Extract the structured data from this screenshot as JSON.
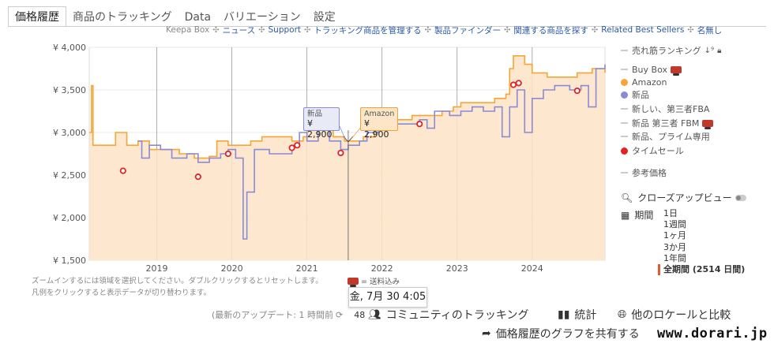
{
  "tabs": [
    "価格履歴",
    "商品のトラッキング",
    "Data",
    "バリエーション",
    "設定"
  ],
  "sublinks": {
    "keepa_box": "Keepa Box",
    "items": [
      "ニュース",
      "Support",
      "トラッキング商品を管理する",
      "製品ファインダー",
      "関連する商品を探す",
      "Related Best Sellers",
      "名無し"
    ]
  },
  "legend": {
    "items": [
      {
        "label": "売れ筋ランキング",
        "kind": "dash",
        "color": "#bbbbbb"
      },
      {
        "label": "Buy Box",
        "kind": "dash",
        "color": "#bbbbbb"
      },
      {
        "label": "Amazon",
        "kind": "dot",
        "color": "#f7a534"
      },
      {
        "label": "新品",
        "kind": "dot",
        "color": "#8a8ad6"
      },
      {
        "label": "新しい、第三者FBA",
        "kind": "dash",
        "color": "#bbbbbb"
      },
      {
        "label": "新品 第三者 FBM",
        "kind": "dash",
        "color": "#bbbbbb"
      },
      {
        "label": "新品、プライム専用",
        "kind": "dash",
        "color": "#bbbbbb"
      },
      {
        "label": "タイムセール",
        "kind": "dot",
        "color": "#e32226"
      },
      {
        "label": "参考価格",
        "kind": "dash",
        "color": "#bbbbbb"
      }
    ]
  },
  "closeup_label": "クローズアップビュー",
  "period": {
    "label": "期間",
    "options": [
      "1日",
      "1週間",
      "1ヶ月",
      "3か月",
      "1年間",
      "全期間 (2514 日間)"
    ],
    "selected_index": 5
  },
  "hints": [
    "ズームインするには領域を選択してください。ダブルクリックするとリセットします。",
    "凡例をクリックすると表示データが切り替わります。"
  ],
  "shipping_label": "= 送料込み",
  "tooltips": {
    "new": {
      "title": "新品",
      "value": "¥ 2,900"
    },
    "amazon": {
      "title": "Amazon",
      "value": "¥ 2,900"
    },
    "date": "金, 7月 30 4:05"
  },
  "footer": {
    "last_update": "(最新のアップデート: 1 時間前",
    "community_count": "48",
    "community_label": "コミュニティのトラッキング",
    "stats_label": "統計",
    "compare_label": "他のロケールと比較",
    "share_label": "価格履歴のグラフを共有する",
    "watermark": "www.dorari.jp"
  },
  "chart_data": {
    "type": "line",
    "ylim": [
      1500,
      4000
    ],
    "y_ticks": [
      "¥ 1,500",
      "¥ 2,000",
      "¥ 2,500",
      "¥ 3,000",
      "¥ 3,500",
      "¥ 4,000"
    ],
    "x_ticks": [
      "2019",
      "2020",
      "2021",
      "2022",
      "2023",
      "2024"
    ],
    "x_range": [
      2018.1,
      2024.97
    ],
    "series": [
      {
        "name": "Amazon",
        "color": "#f7a534",
        "points": [
          [
            2018.1,
            3000
          ],
          [
            2018.13,
            3550
          ],
          [
            2018.15,
            2850
          ],
          [
            2018.4,
            2850
          ],
          [
            2018.45,
            3000
          ],
          [
            2018.6,
            2850
          ],
          [
            2018.75,
            2900
          ],
          [
            2018.9,
            2800
          ],
          [
            2019.1,
            2800
          ],
          [
            2019.3,
            2750
          ],
          [
            2019.5,
            2700
          ],
          [
            2019.7,
            2720
          ],
          [
            2019.8,
            2900
          ],
          [
            2019.95,
            2850
          ],
          [
            2020.1,
            2850
          ],
          [
            2020.25,
            2900
          ],
          [
            2020.4,
            2950
          ],
          [
            2020.6,
            2950
          ],
          [
            2020.8,
            2900
          ],
          [
            2020.95,
            2950
          ],
          [
            2021.0,
            3100
          ],
          [
            2021.2,
            3050
          ],
          [
            2021.35,
            2950
          ],
          [
            2021.5,
            2900
          ],
          [
            2021.6,
            2900
          ],
          [
            2021.75,
            2950
          ],
          [
            2021.9,
            3050
          ],
          [
            2022.0,
            3100
          ],
          [
            2022.2,
            3150
          ],
          [
            2022.4,
            3200
          ],
          [
            2022.6,
            3200
          ],
          [
            2022.8,
            3250
          ],
          [
            2022.95,
            3300
          ],
          [
            2023.05,
            3350
          ],
          [
            2023.2,
            3350
          ],
          [
            2023.35,
            3350
          ],
          [
            2023.5,
            3400
          ],
          [
            2023.65,
            3450
          ],
          [
            2023.7,
            3750
          ],
          [
            2023.75,
            3900
          ],
          [
            2023.9,
            3800
          ],
          [
            2024.0,
            3700
          ],
          [
            2024.2,
            3650
          ],
          [
            2024.4,
            3650
          ],
          [
            2024.6,
            3700
          ],
          [
            2024.8,
            3750
          ],
          [
            2024.97,
            3700
          ]
        ]
      },
      {
        "name": "新品",
        "color": "#8a8ad6",
        "points": [
          [
            2018.75,
            2900
          ],
          [
            2018.8,
            2700
          ],
          [
            2018.9,
            2850
          ],
          [
            2019.05,
            2800
          ],
          [
            2019.2,
            2700
          ],
          [
            2019.4,
            2750
          ],
          [
            2019.55,
            2650
          ],
          [
            2019.7,
            2700
          ],
          [
            2019.85,
            2750
          ],
          [
            2019.95,
            2800
          ],
          [
            2020.05,
            2700
          ],
          [
            2020.15,
            1750
          ],
          [
            2020.2,
            2300
          ],
          [
            2020.3,
            2800
          ],
          [
            2020.5,
            2750
          ],
          [
            2020.7,
            2750
          ],
          [
            2020.8,
            2850
          ],
          [
            2020.9,
            3000
          ],
          [
            2021.0,
            2900
          ],
          [
            2021.15,
            3050
          ],
          [
            2021.3,
            2900
          ],
          [
            2021.45,
            2800
          ],
          [
            2021.55,
            2850
          ],
          [
            2021.7,
            2900
          ],
          [
            2021.8,
            3000
          ],
          [
            2021.95,
            3050
          ],
          [
            2022.1,
            3100
          ],
          [
            2022.3,
            3100
          ],
          [
            2022.5,
            3150
          ],
          [
            2022.6,
            3050
          ],
          [
            2022.7,
            3250
          ],
          [
            2022.9,
            3200
          ],
          [
            2023.05,
            3250
          ],
          [
            2023.2,
            3300
          ],
          [
            2023.35,
            3250
          ],
          [
            2023.5,
            3300
          ],
          [
            2023.6,
            2950
          ],
          [
            2023.7,
            3300
          ],
          [
            2023.8,
            3500
          ],
          [
            2023.9,
            3000
          ],
          [
            2024.0,
            3400
          ],
          [
            2024.15,
            3500
          ],
          [
            2024.3,
            3550
          ],
          [
            2024.5,
            3500
          ],
          [
            2024.65,
            3550
          ],
          [
            2024.75,
            3300
          ],
          [
            2024.85,
            3750
          ],
          [
            2024.97,
            3800
          ]
        ]
      }
    ],
    "sale_points": [
      [
        2018.55,
        2550
      ],
      [
        2019.55,
        2480
      ],
      [
        2019.95,
        2750
      ],
      [
        2020.8,
        2820
      ],
      [
        2020.87,
        2850
      ],
      [
        2021.45,
        2760
      ],
      [
        2022.5,
        3100
      ],
      [
        2023.75,
        3560
      ],
      [
        2023.82,
        3580
      ],
      [
        2024.6,
        3490
      ]
    ]
  }
}
